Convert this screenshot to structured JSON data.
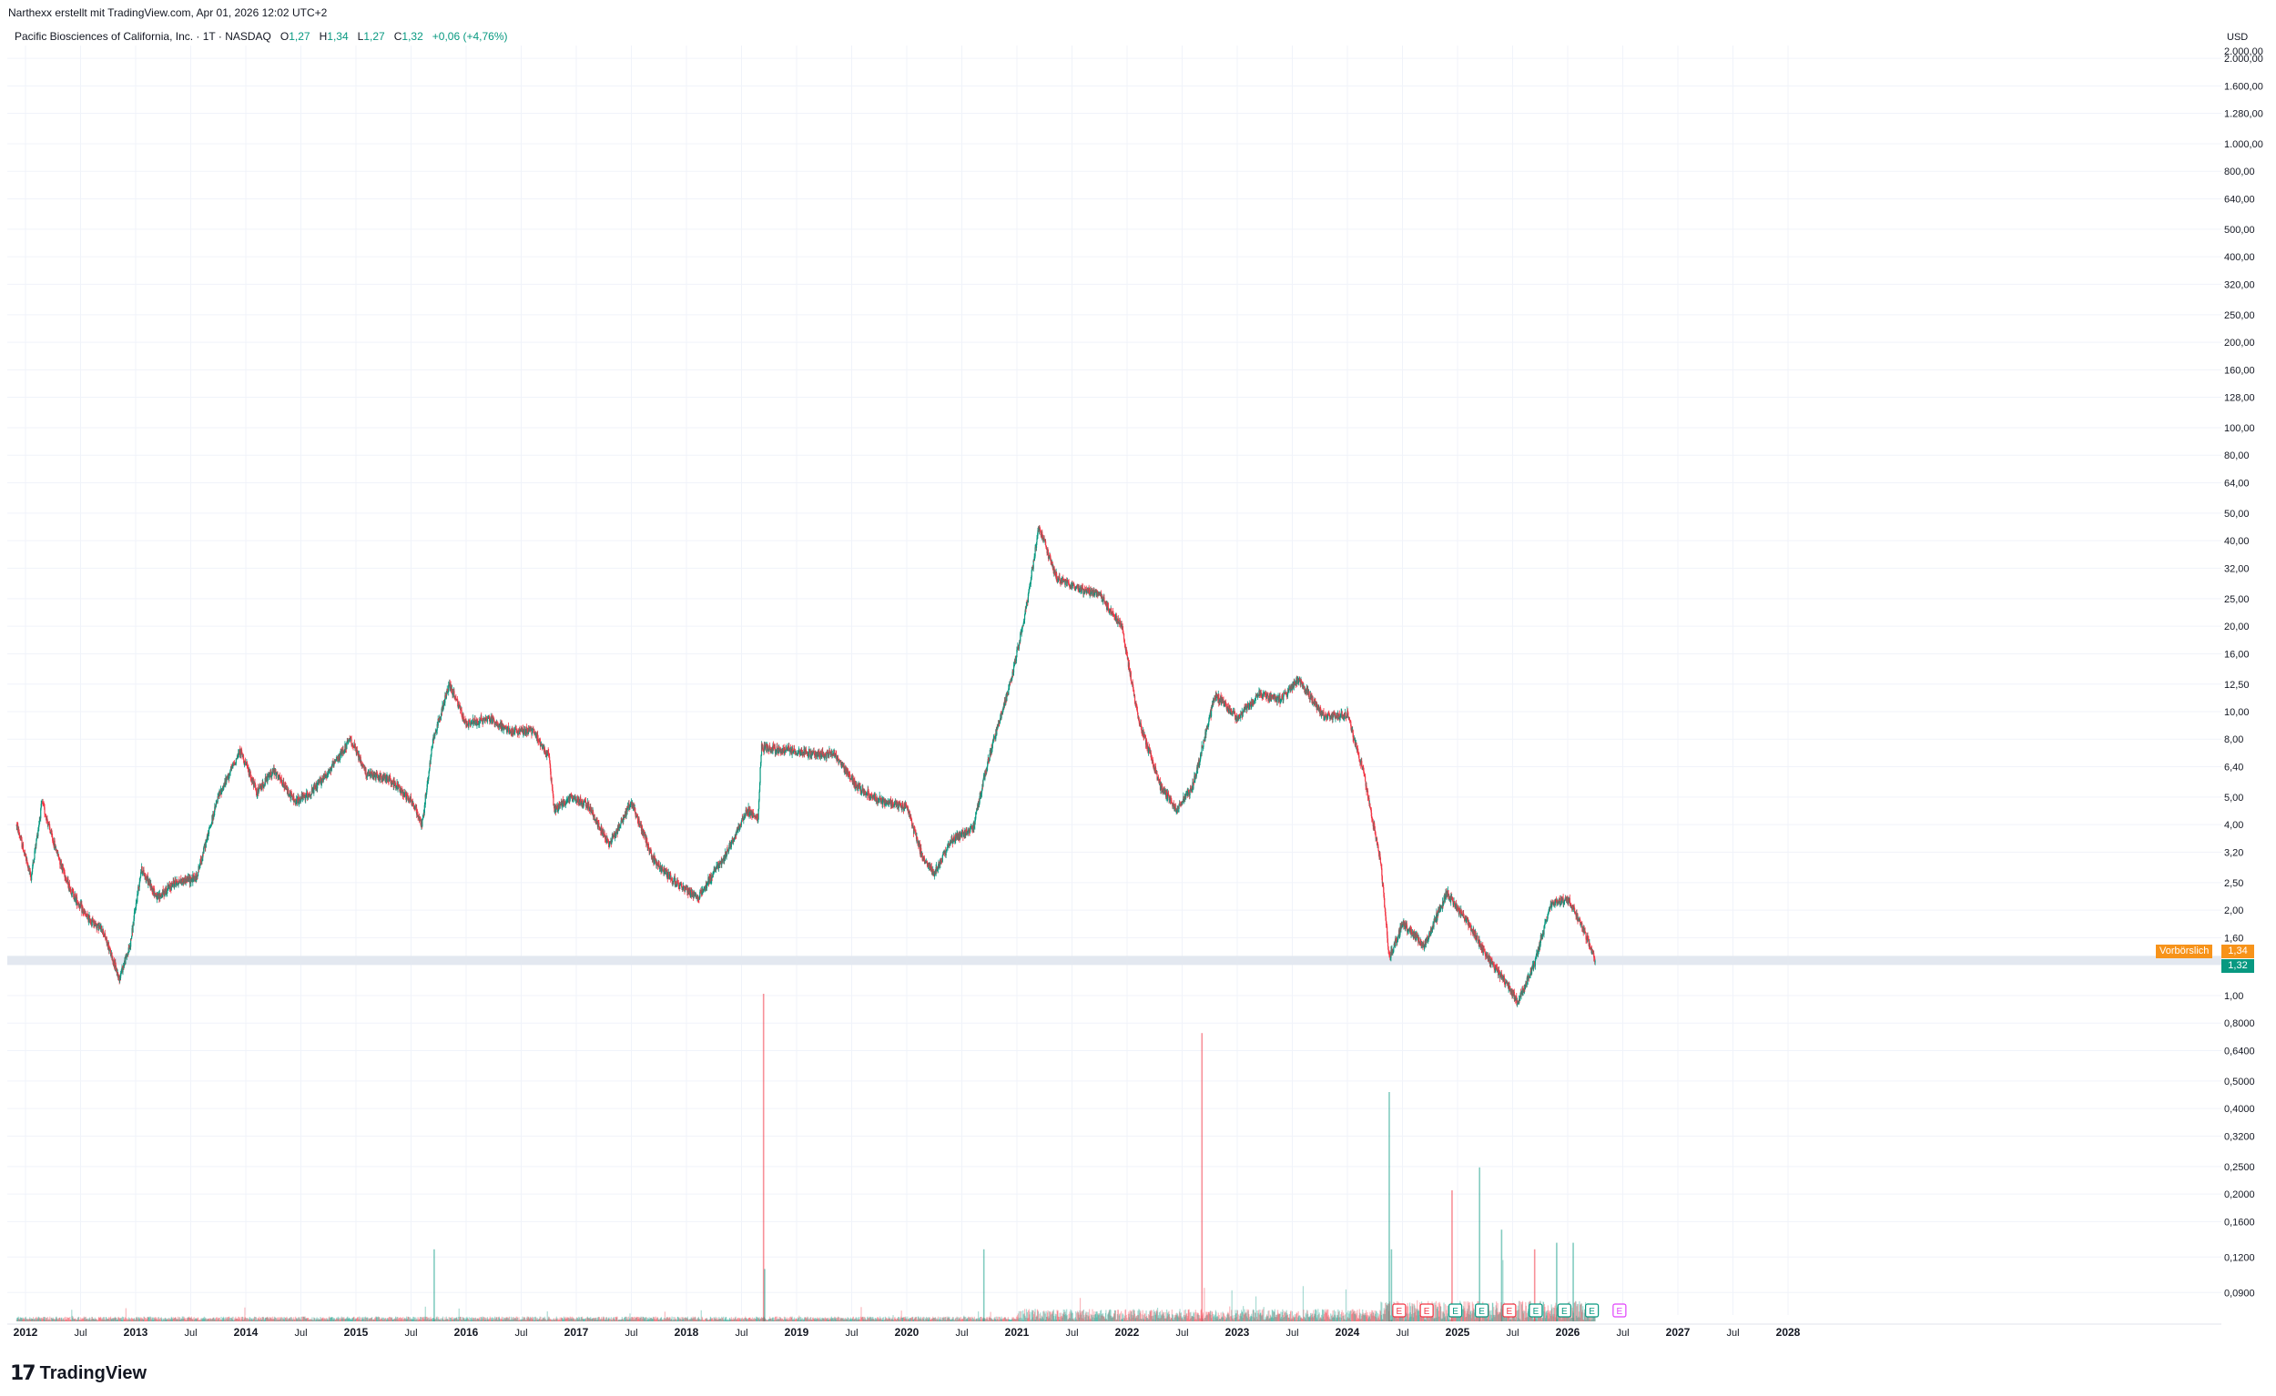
{
  "credit": "Narthexx erstellt mit TradingView.com, Apr 01, 2026 12:02 UTC+2",
  "legend": {
    "symbol": "Pacific Biosciences of California, Inc. · 1T · NASDAQ",
    "open_label": "O",
    "open": "1,27",
    "high_label": "H",
    "high": "1,34",
    "low_label": "L",
    "low": "1,27",
    "close_label": "C",
    "close": "1,32",
    "change": "+0,06 (+4,76%)"
  },
  "currency": "USD",
  "premarket_label": "Vorbörslich",
  "premarket_value": "1,34",
  "last_value": "1,32",
  "logo_text": "TradingView",
  "colors": {
    "up": "#089981",
    "down": "#f23645",
    "premarket": "#f7931a",
    "earnings_future": "#e040fb"
  },
  "chart_data": {
    "type": "candlestick",
    "y_scale": "log",
    "y_ticks": [
      "2.000,00",
      "1.600,00",
      "1.280,00",
      "1.000,00",
      "800,00",
      "640,00",
      "500,00",
      "400,00",
      "320,00",
      "250,00",
      "200,00",
      "160,00",
      "128,00",
      "100,00",
      "80,00",
      "64,00",
      "50,00",
      "40,00",
      "32,00",
      "25,00",
      "20,00",
      "16,00",
      "12,50",
      "10,00",
      "8,00",
      "6,40",
      "5,00",
      "4,00",
      "3,20",
      "2,50",
      "2,00",
      "1,60",
      "1,00",
      "0,8000",
      "0,6400",
      "0,5000",
      "0,4000",
      "0,3200",
      "0,2500",
      "0,2000",
      "0,1600",
      "0,1200",
      "0,0900"
    ],
    "y_tick_values": [
      2000,
      1600,
      1280,
      1000,
      800,
      640,
      500,
      400,
      320,
      250,
      200,
      160,
      128,
      100,
      80,
      64,
      50,
      40,
      32,
      25,
      20,
      16,
      12.5,
      10,
      8,
      6.4,
      5,
      4,
      3.2,
      2.5,
      2,
      1.6,
      1.0,
      0.8,
      0.64,
      0.5,
      0.4,
      0.32,
      0.25,
      0.2,
      0.16,
      0.12,
      0.09
    ],
    "x_ticks": [
      "2012",
      "Jul",
      "2013",
      "Jul",
      "2014",
      "Jul",
      "2015",
      "Jul",
      "2016",
      "Jul",
      "2017",
      "Jul",
      "2018",
      "Jul",
      "2019",
      "Jul",
      "2020",
      "Jul",
      "2021",
      "Jul",
      "2022",
      "Jul",
      "2023",
      "Jul",
      "2024",
      "Jul",
      "2025",
      "Jul",
      "2026",
      "Jul",
      "2027",
      "Jul",
      "2028"
    ],
    "x_tick_values": [
      2012.0,
      2012.5,
      2013.0,
      2013.5,
      2014.0,
      2014.5,
      2015.0,
      2015.5,
      2016.0,
      2016.5,
      2017.0,
      2017.5,
      2018.0,
      2018.5,
      2019.0,
      2019.5,
      2020.0,
      2020.5,
      2021.0,
      2021.5,
      2022.0,
      2022.5,
      2023.0,
      2023.5,
      2024.0,
      2024.5,
      2025.0,
      2025.5,
      2026.0,
      2026.5,
      2027.0,
      2027.5,
      2028.0
    ],
    "x_range": [
      2011.9,
      2028.3
    ],
    "price_path": [
      [
        2011.92,
        4.0
      ],
      [
        2012.05,
        2.6
      ],
      [
        2012.15,
        4.8
      ],
      [
        2012.25,
        3.5
      ],
      [
        2012.4,
        2.4
      ],
      [
        2012.55,
        1.9
      ],
      [
        2012.7,
        1.7
      ],
      [
        2012.85,
        1.15
      ],
      [
        2012.95,
        1.5
      ],
      [
        2013.05,
        2.8
      ],
      [
        2013.2,
        2.2
      ],
      [
        2013.35,
        2.5
      ],
      [
        2013.55,
        2.6
      ],
      [
        2013.75,
        5.0
      ],
      [
        2013.95,
        7.3
      ],
      [
        2014.1,
        5.2
      ],
      [
        2014.25,
        6.2
      ],
      [
        2014.45,
        4.8
      ],
      [
        2014.6,
        5.2
      ],
      [
        2014.8,
        6.5
      ],
      [
        2014.95,
        8.0
      ],
      [
        2015.1,
        6.0
      ],
      [
        2015.3,
        5.8
      ],
      [
        2015.5,
        4.9
      ],
      [
        2015.6,
        4.0
      ],
      [
        2015.7,
        8.0
      ],
      [
        2015.85,
        12.5
      ],
      [
        2016.0,
        9.0
      ],
      [
        2016.2,
        9.5
      ],
      [
        2016.4,
        8.5
      ],
      [
        2016.6,
        8.6
      ],
      [
        2016.75,
        7.0
      ],
      [
        2016.8,
        4.5
      ],
      [
        2016.95,
        5.0
      ],
      [
        2017.1,
        4.7
      ],
      [
        2017.3,
        3.4
      ],
      [
        2017.5,
        4.8
      ],
      [
        2017.7,
        3.0
      ],
      [
        2017.9,
        2.5
      ],
      [
        2018.1,
        2.2
      ],
      [
        2018.35,
        3.1
      ],
      [
        2018.55,
        4.5
      ],
      [
        2018.65,
        4.2
      ],
      [
        2018.68,
        7.5
      ],
      [
        2019.05,
        7.2
      ],
      [
        2019.35,
        7.0
      ],
      [
        2019.55,
        5.4
      ],
      [
        2019.8,
        4.8
      ],
      [
        2020.0,
        4.6
      ],
      [
        2020.15,
        3.0
      ],
      [
        2020.25,
        2.7
      ],
      [
        2020.4,
        3.5
      ],
      [
        2020.6,
        3.9
      ],
      [
        2020.75,
        7.0
      ],
      [
        2020.95,
        13.0
      ],
      [
        2021.1,
        25.0
      ],
      [
        2021.2,
        45.0
      ],
      [
        2021.35,
        30.0
      ],
      [
        2021.55,
        27.0
      ],
      [
        2021.75,
        26.0
      ],
      [
        2021.95,
        20.0
      ],
      [
        2022.1,
        9.5
      ],
      [
        2022.3,
        5.5
      ],
      [
        2022.45,
        4.5
      ],
      [
        2022.6,
        5.5
      ],
      [
        2022.8,
        11.5
      ],
      [
        2023.0,
        9.5
      ],
      [
        2023.2,
        11.5
      ],
      [
        2023.4,
        11.0
      ],
      [
        2023.55,
        13.0
      ],
      [
        2023.8,
        9.5
      ],
      [
        2024.0,
        9.8
      ],
      [
        2024.15,
        6.0
      ],
      [
        2024.3,
        3.0
      ],
      [
        2024.38,
        1.35
      ],
      [
        2024.5,
        1.8
      ],
      [
        2024.7,
        1.5
      ],
      [
        2024.9,
        2.3
      ],
      [
        2025.1,
        1.8
      ],
      [
        2025.25,
        1.4
      ],
      [
        2025.45,
        1.1
      ],
      [
        2025.55,
        0.95
      ],
      [
        2025.7,
        1.3
      ],
      [
        2025.85,
        2.1
      ],
      [
        2026.0,
        2.2
      ],
      [
        2026.15,
        1.7
      ],
      [
        2026.25,
        1.32
      ]
    ],
    "volume_spikes": [
      [
        2015.71,
        0.22
      ],
      [
        2018.7,
        1.0
      ],
      [
        2018.71,
        0.16
      ],
      [
        2020.7,
        0.22
      ],
      [
        2022.68,
        0.88
      ],
      [
        2024.38,
        0.7
      ],
      [
        2024.4,
        0.22
      ],
      [
        2024.95,
        0.4
      ],
      [
        2025.2,
        0.47
      ],
      [
        2025.4,
        0.28
      ],
      [
        2025.7,
        0.22
      ],
      [
        2025.9,
        0.24
      ],
      [
        2026.05,
        0.24
      ]
    ],
    "earnings_markers": [
      {
        "x": 2024.47,
        "label": "E",
        "kind": "miss"
      },
      {
        "x": 2024.72,
        "label": "E",
        "kind": "miss"
      },
      {
        "x": 2024.98,
        "label": "E",
        "kind": "beat"
      },
      {
        "x": 2025.22,
        "label": "E",
        "kind": "beat"
      },
      {
        "x": 2025.47,
        "label": "E",
        "kind": "miss"
      },
      {
        "x": 2025.71,
        "label": "E",
        "kind": "beat"
      },
      {
        "x": 2025.97,
        "label": "E",
        "kind": "beat"
      },
      {
        "x": 2026.22,
        "label": "E",
        "kind": "beat"
      },
      {
        "x": 2026.47,
        "label": "E",
        "kind": "future"
      }
    ],
    "last_price": 1.32,
    "premarket_price": 1.34
  }
}
